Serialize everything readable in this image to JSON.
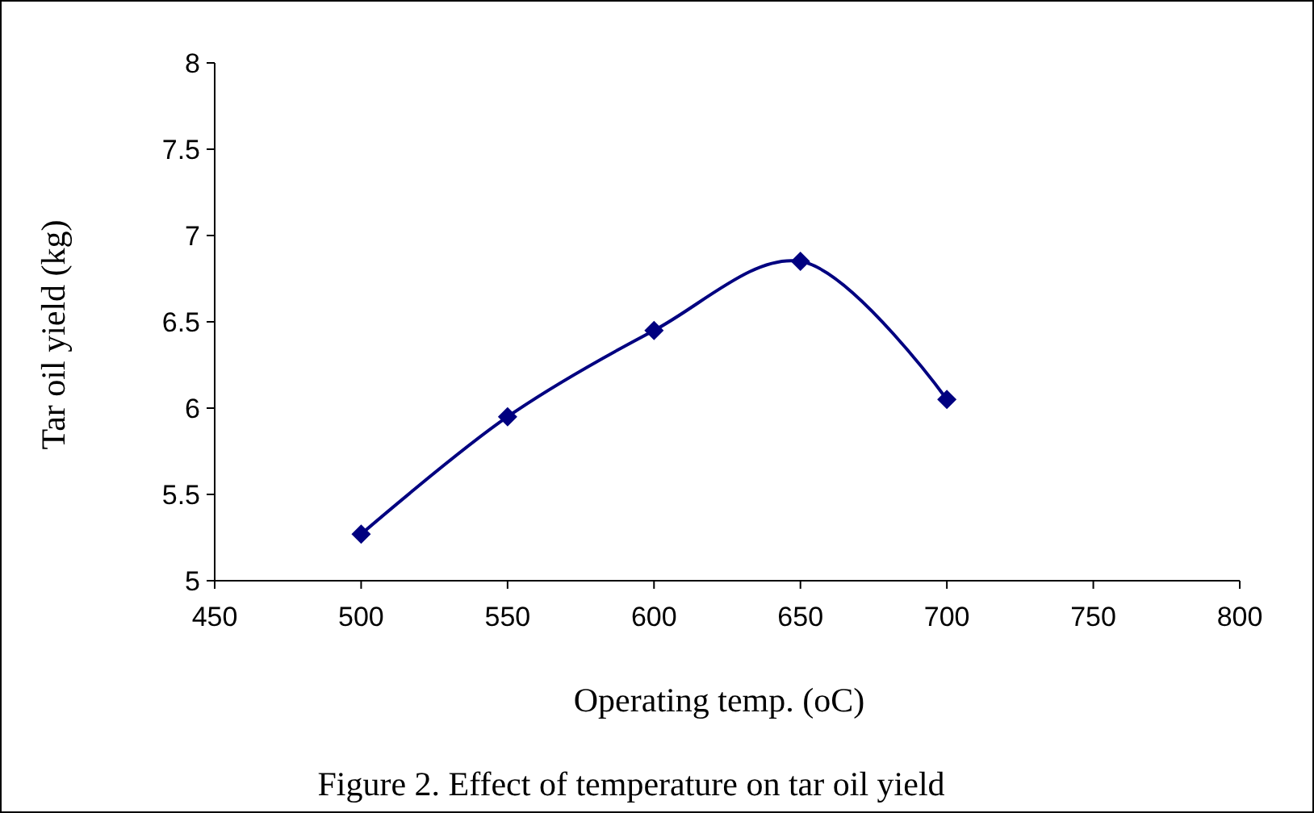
{
  "chart_data": {
    "type": "line",
    "xlabel": "Operating temp. (oC)",
    "ylabel": "Tar oil yield (kg)",
    "annotations": [
      "Figure 2. Effect of temperature on tar oil yield"
    ],
    "x": [
      500,
      550,
      600,
      650,
      700
    ],
    "series": [
      {
        "color": "#000080",
        "values": [
          5.27,
          5.95,
          6.45,
          6.85,
          6.05
        ]
      }
    ],
    "xlim": [
      450,
      800
    ],
    "xticks": [
      450,
      500,
      550,
      600,
      650,
      700,
      750,
      800
    ],
    "ylim": [
      5,
      8
    ],
    "yticks": [
      5,
      5.5,
      6,
      6.5,
      7,
      7.5,
      8
    ],
    "marker": "diamond",
    "line_style": "solid",
    "grid": false
  }
}
